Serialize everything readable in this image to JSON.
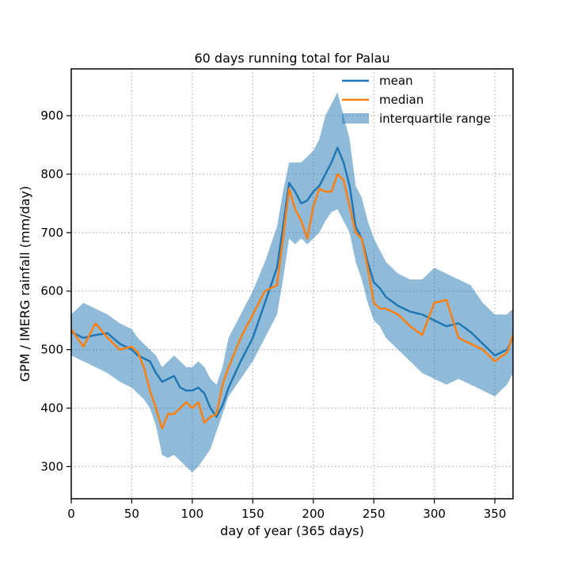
{
  "chart_data": {
    "type": "line",
    "title": "60 days running total for Palau",
    "xlabel": "day of year (365 days)",
    "ylabel": "GPM / IMERG rainfall (mm/day)",
    "xlim": [
      0,
      365
    ],
    "ylim": [
      245,
      980
    ],
    "xticks": [
      0,
      50,
      100,
      150,
      200,
      250,
      300,
      350
    ],
    "yticks": [
      300,
      400,
      500,
      600,
      700,
      800,
      900
    ],
    "grid": true,
    "legend_position": "top-right",
    "colors": {
      "mean": "#1f77b4",
      "median": "#ff7f0e",
      "iqr": "#1f77b4"
    },
    "x": [
      0,
      10,
      20,
      30,
      40,
      50,
      55,
      60,
      65,
      70,
      75,
      80,
      85,
      90,
      95,
      100,
      105,
      110,
      115,
      120,
      125,
      130,
      140,
      150,
      160,
      170,
      175,
      180,
      185,
      190,
      195,
      200,
      205,
      210,
      215,
      220,
      225,
      230,
      235,
      240,
      245,
      250,
      255,
      260,
      270,
      280,
      290,
      300,
      310,
      320,
      330,
      340,
      350,
      360,
      365
    ],
    "series": [
      {
        "name": "mean",
        "values": [
          530,
          520,
          525,
          528,
          510,
          500,
          490,
          485,
          480,
          460,
          445,
          450,
          455,
          435,
          430,
          430,
          435,
          425,
          400,
          385,
          405,
          435,
          480,
          520,
          580,
          640,
          710,
          785,
          770,
          750,
          755,
          770,
          780,
          800,
          820,
          845,
          820,
          780,
          710,
          690,
          650,
          615,
          605,
          590,
          575,
          565,
          560,
          550,
          540,
          545,
          530,
          510,
          490,
          500,
          520
        ]
      },
      {
        "name": "median",
        "values": [
          535,
          505,
          545,
          520,
          500,
          505,
          495,
          470,
          430,
          400,
          365,
          390,
          390,
          400,
          410,
          400,
          410,
          375,
          385,
          390,
          440,
          470,
          520,
          560,
          600,
          610,
          690,
          775,
          740,
          720,
          690,
          745,
          775,
          770,
          770,
          800,
          790,
          745,
          700,
          690,
          640,
          580,
          570,
          570,
          560,
          540,
          525,
          580,
          585,
          520,
          510,
          500,
          480,
          495,
          525
        ]
      },
      {
        "name": "interquartile range",
        "low": [
          490,
          480,
          470,
          460,
          445,
          435,
          425,
          415,
          400,
          370,
          320,
          315,
          320,
          310,
          300,
          290,
          300,
          315,
          330,
          360,
          390,
          420,
          450,
          480,
          520,
          560,
          620,
          690,
          680,
          690,
          680,
          690,
          700,
          720,
          735,
          740,
          720,
          700,
          650,
          620,
          580,
          550,
          540,
          520,
          500,
          480,
          460,
          450,
          440,
          450,
          440,
          430,
          420,
          440,
          460
        ],
        "high": [
          560,
          580,
          570,
          560,
          545,
          535,
          520,
          510,
          500,
          490,
          470,
          480,
          490,
          480,
          470,
          470,
          480,
          470,
          450,
          440,
          470,
          520,
          560,
          600,
          650,
          710,
          770,
          820,
          820,
          820,
          830,
          840,
          860,
          900,
          920,
          940,
          900,
          860,
          780,
          760,
          720,
          690,
          670,
          650,
          630,
          620,
          620,
          640,
          630,
          620,
          610,
          580,
          560,
          560,
          570
        ]
      }
    ]
  }
}
